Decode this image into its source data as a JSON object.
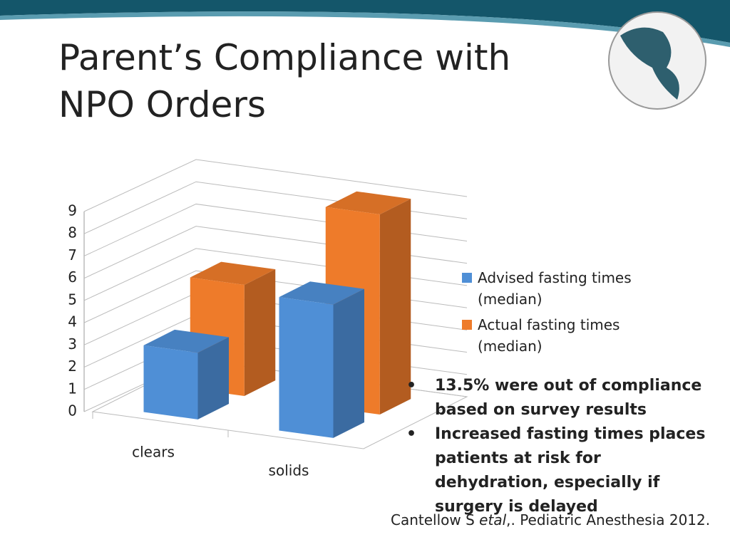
{
  "slide": {
    "title": "Parent’s Compliance with NPO Orders",
    "bullets": [
      "13.5% were out of compliance based on survey results",
      "Increased fasting times places patients at risk for dehydration, especially if surgery is delayed"
    ],
    "citation": {
      "author": "Cantellow S ",
      "etal": "etal",
      "rest": ",. Pediatric Anesthesia 2012."
    }
  },
  "chart_data": {
    "type": "bar3d",
    "categories": [
      "clears",
      "solids"
    ],
    "series": [
      {
        "name": "Advised fasting times (median)",
        "color": "#4f8fd6",
        "values": [
          3,
          6
        ]
      },
      {
        "name": "Actual fasting times (median)",
        "color": "#ee7b2a",
        "values": [
          5,
          9
        ]
      }
    ],
    "ylim": [
      0,
      9
    ],
    "yticks": [
      0,
      1,
      2,
      3,
      4,
      5,
      6,
      7,
      8,
      9
    ],
    "grid": true,
    "legend": "right"
  }
}
